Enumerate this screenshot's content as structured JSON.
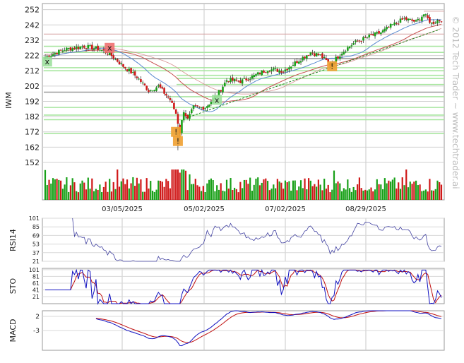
{
  "chart_data": {
    "type": "candlestick",
    "ticker": "IWM",
    "watermark": "© 2012 Tech Trader ~ www.techtrader.ai",
    "x_ticks": [
      "03/05/2025",
      "05/02/2025",
      "07/02/2025",
      "08/29/2025"
    ],
    "price_panel": {
      "ylabel": "IWM",
      "yticks": [
        252,
        242,
        232,
        222,
        212,
        202,
        192,
        182,
        172,
        162,
        152
      ],
      "ylim": [
        146,
        256
      ],
      "approx_close_path": [
        {
          "i": 0,
          "close": 221
        },
        {
          "i": 10,
          "close": 226
        },
        {
          "i": 20,
          "close": 228
        },
        {
          "i": 28,
          "close": 226
        },
        {
          "i": 33,
          "close": 223
        },
        {
          "i": 40,
          "close": 215
        },
        {
          "i": 47,
          "close": 208
        },
        {
          "i": 53,
          "close": 199
        },
        {
          "i": 58,
          "close": 202
        },
        {
          "i": 64,
          "close": 193
        },
        {
          "i": 67,
          "close": 184
        },
        {
          "i": 69,
          "close": 172
        },
        {
          "i": 71,
          "close": 186
        },
        {
          "i": 73,
          "close": 180
        },
        {
          "i": 76,
          "close": 188
        },
        {
          "i": 82,
          "close": 188
        },
        {
          "i": 88,
          "close": 196
        },
        {
          "i": 93,
          "close": 206
        },
        {
          "i": 100,
          "close": 205
        },
        {
          "i": 106,
          "close": 208
        },
        {
          "i": 114,
          "close": 213
        },
        {
          "i": 122,
          "close": 212
        },
        {
          "i": 130,
          "close": 219
        },
        {
          "i": 136,
          "close": 224
        },
        {
          "i": 141,
          "close": 222
        },
        {
          "i": 146,
          "close": 216
        },
        {
          "i": 152,
          "close": 224
        },
        {
          "i": 158,
          "close": 230
        },
        {
          "i": 165,
          "close": 234
        },
        {
          "i": 172,
          "close": 237
        },
        {
          "i": 178,
          "close": 242
        },
        {
          "i": 184,
          "close": 246
        },
        {
          "i": 190,
          "close": 244
        },
        {
          "i": 194,
          "close": 249
        },
        {
          "i": 198,
          "close": 243
        },
        {
          "i": 201,
          "close": 245
        }
      ],
      "support_resistance_levels": [
        251,
        236,
        228,
        224,
        220,
        214,
        212,
        209,
        207,
        203,
        198,
        195,
        188,
        183,
        180,
        171
      ],
      "trendline": {
        "from": {
          "i": 72,
          "price": 181
        },
        "to": {
          "i": 202,
          "price": 239
        }
      },
      "markers": [
        {
          "i": 1,
          "price": 218,
          "label": "x",
          "color": "#9de09d"
        },
        {
          "i": 33,
          "price": 227,
          "label": "x",
          "color": "#f07070"
        },
        {
          "i": 88,
          "price": 193,
          "label": "x",
          "color": "#9de09d"
        },
        {
          "i": 67,
          "price": 172,
          "label": "!",
          "color": "#f0a030"
        },
        {
          "i": 68,
          "price": 166,
          "label": "!",
          "color": "#f0a030"
        },
        {
          "i": 147,
          "price": 215,
          "label": "!",
          "color": "#f0a030"
        }
      ]
    },
    "rsi_panel": {
      "ylabel": "RSI14",
      "yticks": [
        101,
        85,
        69,
        53,
        37,
        21
      ],
      "ylim": [
        21,
        101
      ]
    },
    "sto_panel": {
      "ylabel": "STO",
      "yticks": [
        101,
        81,
        61,
        41,
        21
      ],
      "ylim": [
        0,
        105
      ]
    },
    "macd_panel": {
      "ylabel": "MACD",
      "yticks": [
        2,
        -3
      ],
      "ylim": [
        -10,
        4
      ]
    },
    "colors": {
      "up": "#18a018",
      "down": "#d01818",
      "ma_fast": "#5a8ad0",
      "ma_slow": "#c85050",
      "level_line": "#a8e6a0",
      "resistance_line": "#d6a0a0",
      "trendline": "#208820",
      "rsi_line": "#4040a0",
      "sto_k": "#1010c0",
      "sto_d": "#c01010",
      "macd": "#1010c0",
      "macd_signal": "#c01010"
    }
  }
}
